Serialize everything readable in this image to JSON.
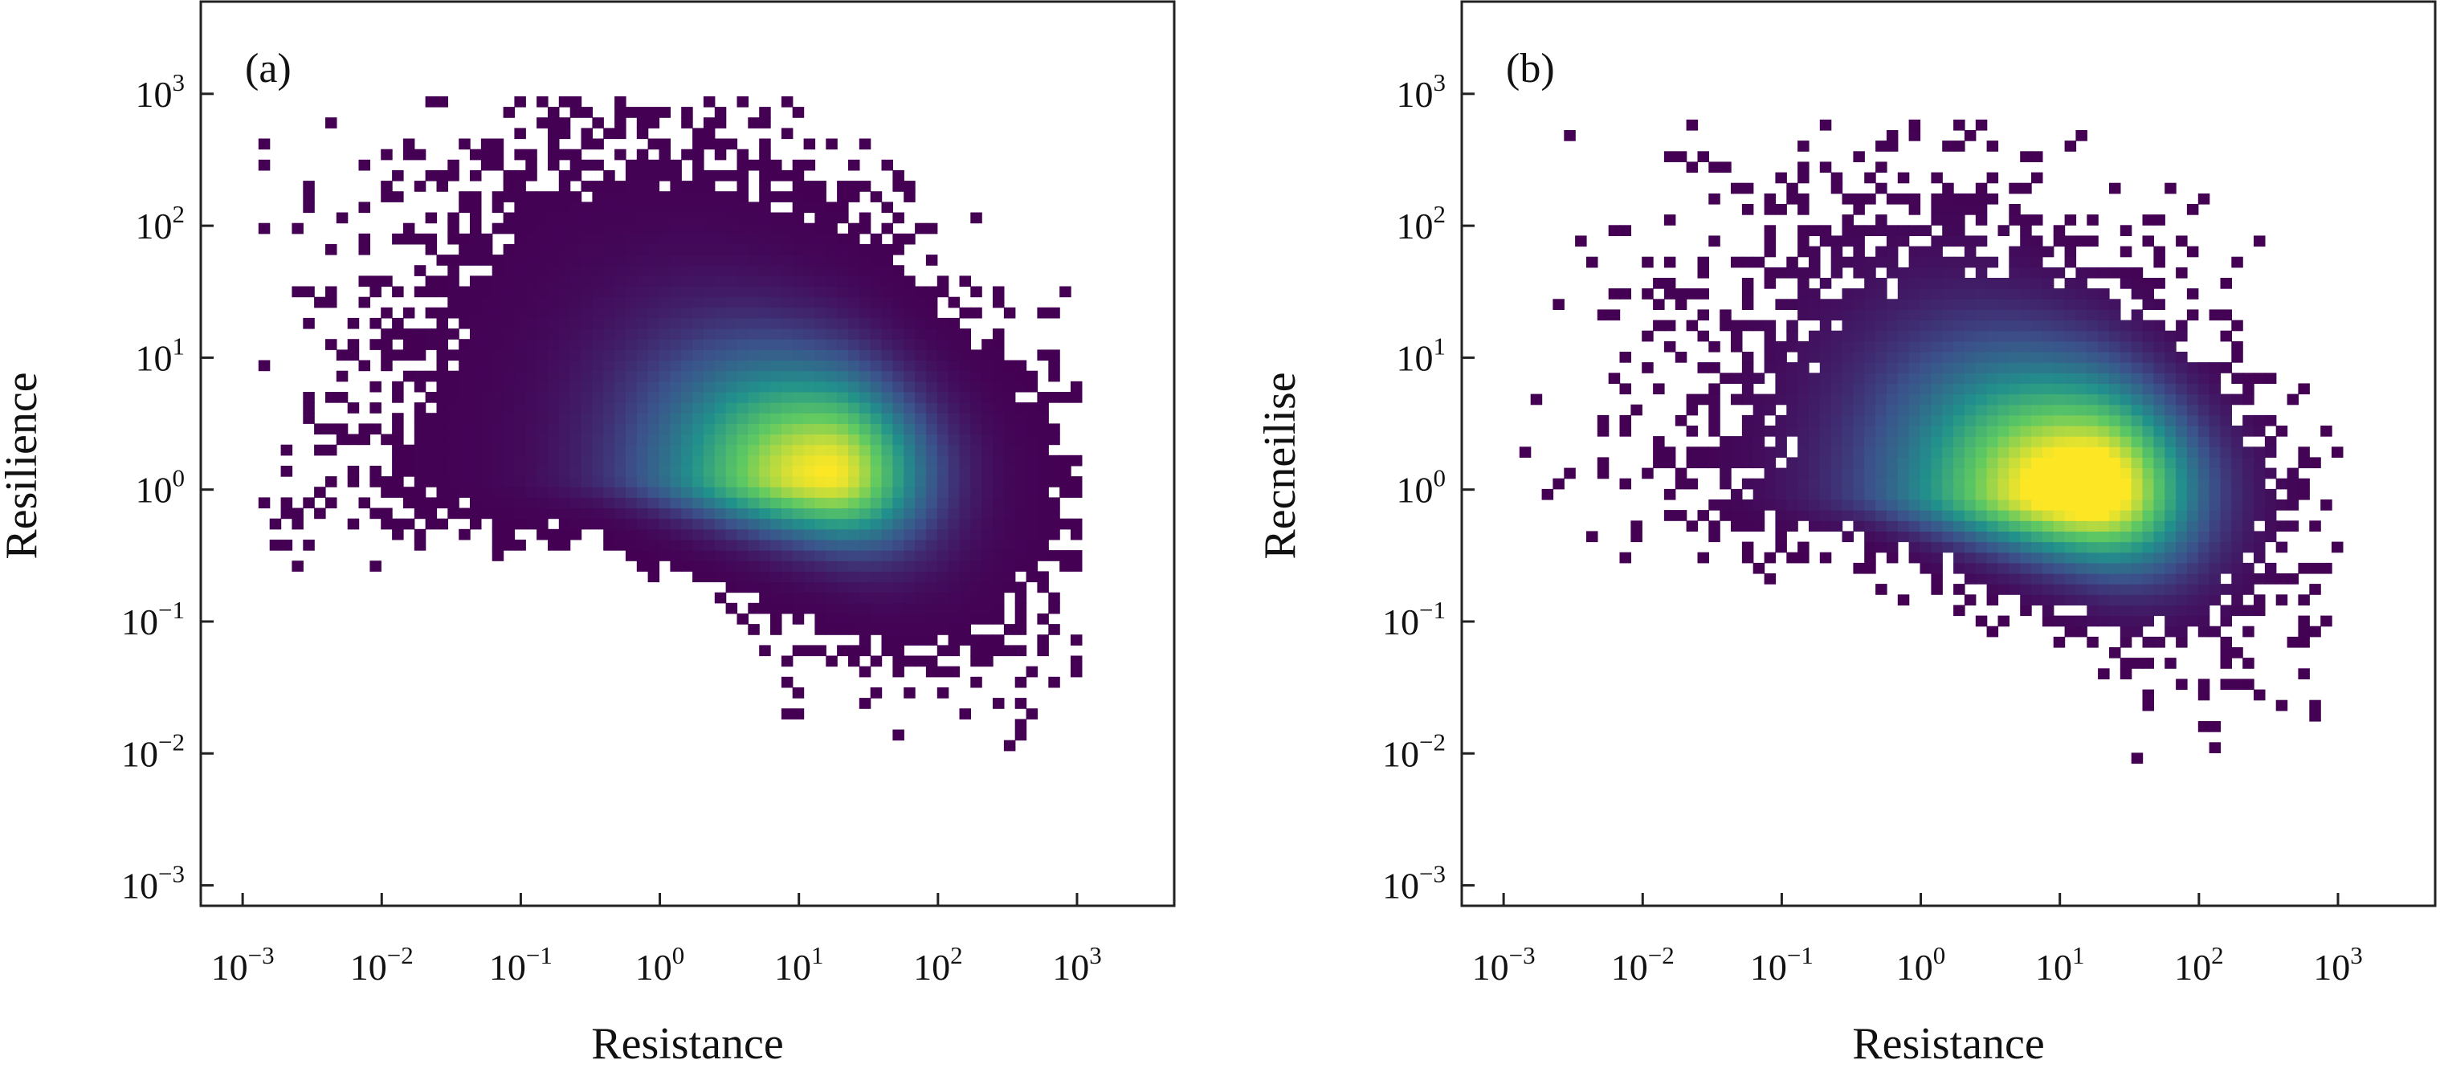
{
  "chart_data": [
    {
      "type": "heatmap",
      "panel_label": "(a)",
      "xlabel": "Resistance",
      "ylabel": "Resilience",
      "x_scale": "log",
      "y_scale": "log",
      "xlim": [
        0.0005,
        5000
      ],
      "ylim": [
        0.0007,
        5000
      ],
      "x_ticks": [
        "10^-3",
        "10^-2",
        "10^-1",
        "10^0",
        "10^1",
        "10^2",
        "10^3"
      ],
      "y_ticks": [
        "10^-3",
        "10^-2",
        "10^-1",
        "10^0",
        "10^1",
        "10^2",
        "10^3"
      ],
      "colormap": [
        "#440154",
        "#3b528b",
        "#21918c",
        "#5ec962",
        "#fde725"
      ],
      "density_peak": {
        "x": 15,
        "y": 1.2
      },
      "point_range": {
        "x": [
          0.0013,
          950
        ],
        "y": [
          0.002,
          850
        ]
      },
      "grid": false
    },
    {
      "type": "heatmap",
      "panel_label": "(b)",
      "xlabel": "Resistance",
      "ylabel": "Recneilise",
      "x_scale": "log",
      "y_scale": "log",
      "xlim": [
        0.0005,
        5000
      ],
      "ylim": [
        0.0007,
        5000
      ],
      "x_ticks": [
        "10^-3",
        "10^-2",
        "10^-1",
        "10^0",
        "10^1",
        "10^2",
        "10^3"
      ],
      "y_ticks": [
        "10^-3",
        "10^-2",
        "10^-1",
        "10^0",
        "10^1",
        "10^2",
        "10^3"
      ],
      "colormap": [
        "#440154",
        "#3b528b",
        "#21918c",
        "#5ec962",
        "#fde725"
      ],
      "density_peak": {
        "x": 15,
        "y": 0.9
      },
      "point_range": {
        "x": [
          0.0013,
          950
        ],
        "y": [
          0.007,
          600
        ]
      },
      "grid": false
    }
  ]
}
